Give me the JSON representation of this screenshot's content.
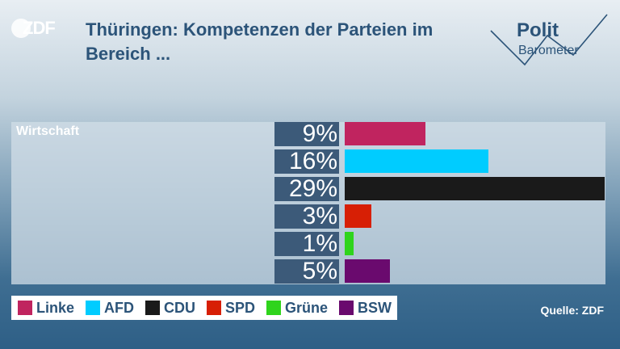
{
  "logo": {
    "text": "ZDF"
  },
  "title": "Thüringen: Kompetenzen der Parteien im Bereich ...",
  "brand": {
    "line1": "Polit",
    "line2": "Barometer"
  },
  "source": "Quelle: ZDF",
  "chart_data": {
    "type": "bar",
    "orientation": "horizontal",
    "category": "Wirtschaft",
    "unit": "%",
    "xlim": [
      0,
      29
    ],
    "series": [
      {
        "name": "Linke",
        "value": 9,
        "label": "9%",
        "color": "#c0245f"
      },
      {
        "name": "AFD",
        "value": 16,
        "label": "16%",
        "color": "#00ccff"
      },
      {
        "name": "CDU",
        "value": 29,
        "label": "29%",
        "color": "#1a1a1a"
      },
      {
        "name": "SPD",
        "value": 3,
        "label": "3%",
        "color": "#d71f05"
      },
      {
        "name": "Grüne",
        "value": 1,
        "label": "1%",
        "color": "#2fd41c"
      },
      {
        "name": "BSW",
        "value": 5,
        "label": "5%",
        "color": "#6a0a6e"
      }
    ],
    "legend_position": "bottom-left"
  }
}
